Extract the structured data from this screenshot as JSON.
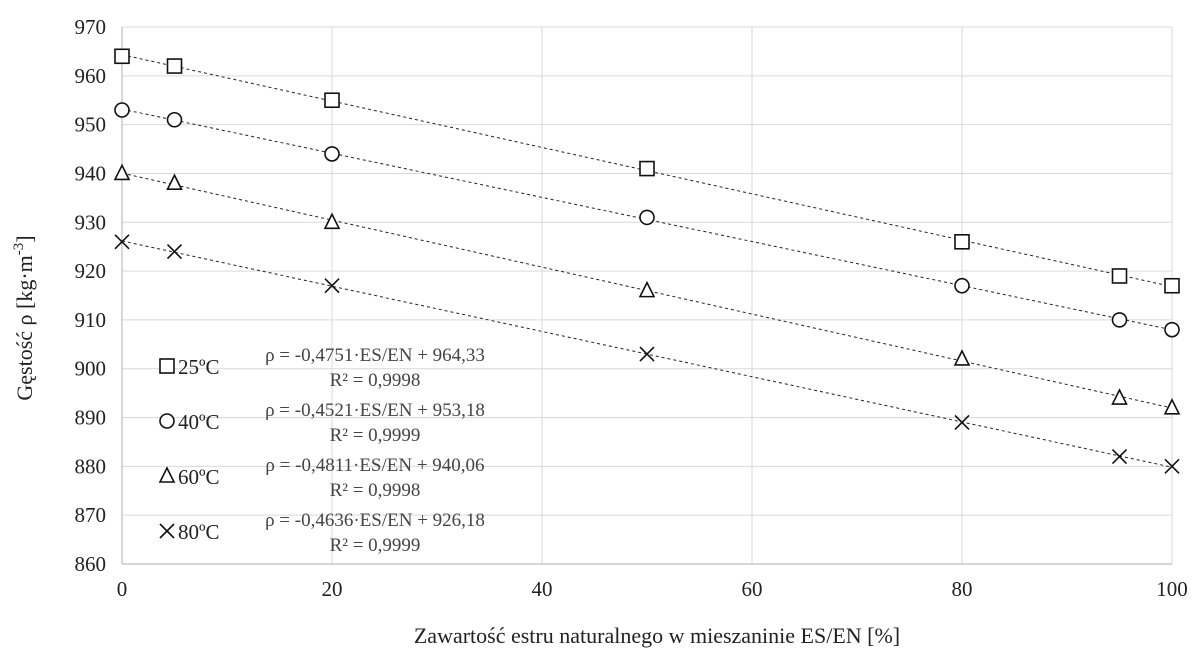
{
  "chart_data": {
    "type": "scatter",
    "xlabel": "Zawartość estru naturalnego w mieszaninie ES/EN [%]",
    "ylabel": "Gęstość ρ  [kg·m",
    "ylabel_sup": "-3",
    "ylabel_end": "]",
    "xlim": [
      0,
      100
    ],
    "ylim": [
      860,
      970
    ],
    "x_ticks": [
      0,
      20,
      40,
      60,
      80,
      100
    ],
    "y_ticks": [
      860,
      870,
      880,
      890,
      900,
      910,
      920,
      930,
      940,
      950,
      960,
      970
    ],
    "grid": true,
    "legend_position": "bottom-left",
    "series": [
      {
        "name": "25ºC",
        "marker": "square",
        "x": [
          0,
          5,
          20,
          50,
          80,
          95,
          100
        ],
        "y": [
          964,
          962,
          955,
          941,
          926,
          919,
          917
        ],
        "trend": {
          "slope": -0.4751,
          "intercept": 964.33
        },
        "equation": "ρ = -0,4751·ES/EN + 964,33",
        "r2": "R² = 0,9998"
      },
      {
        "name": "40ºC",
        "marker": "circle",
        "x": [
          0,
          5,
          20,
          50,
          80,
          95,
          100
        ],
        "y": [
          953,
          951,
          944,
          931,
          917,
          910,
          908
        ],
        "trend": {
          "slope": -0.4521,
          "intercept": 953.18
        },
        "equation": "ρ = -0,4521·ES/EN + 953,18",
        "r2": "R² = 0,9999"
      },
      {
        "name": "60ºC",
        "marker": "triangle",
        "x": [
          0,
          5,
          20,
          50,
          80,
          95,
          100
        ],
        "y": [
          940,
          938,
          930,
          916,
          902,
          894,
          892
        ],
        "trend": {
          "slope": -0.4811,
          "intercept": 940.06
        },
        "equation": "ρ = -0,4811·ES/EN + 940,06",
        "r2": "R² = 0,9998"
      },
      {
        "name": "80ºC",
        "marker": "cross",
        "x": [
          0,
          5,
          20,
          50,
          80,
          95,
          100
        ],
        "y": [
          926,
          924,
          917,
          903,
          889,
          882,
          880
        ],
        "trend": {
          "slope": -0.4636,
          "intercept": 926.18
        },
        "equation": "ρ = -0,4636·ES/EN + 926,18",
        "r2": "R² = 0,9999"
      }
    ]
  }
}
